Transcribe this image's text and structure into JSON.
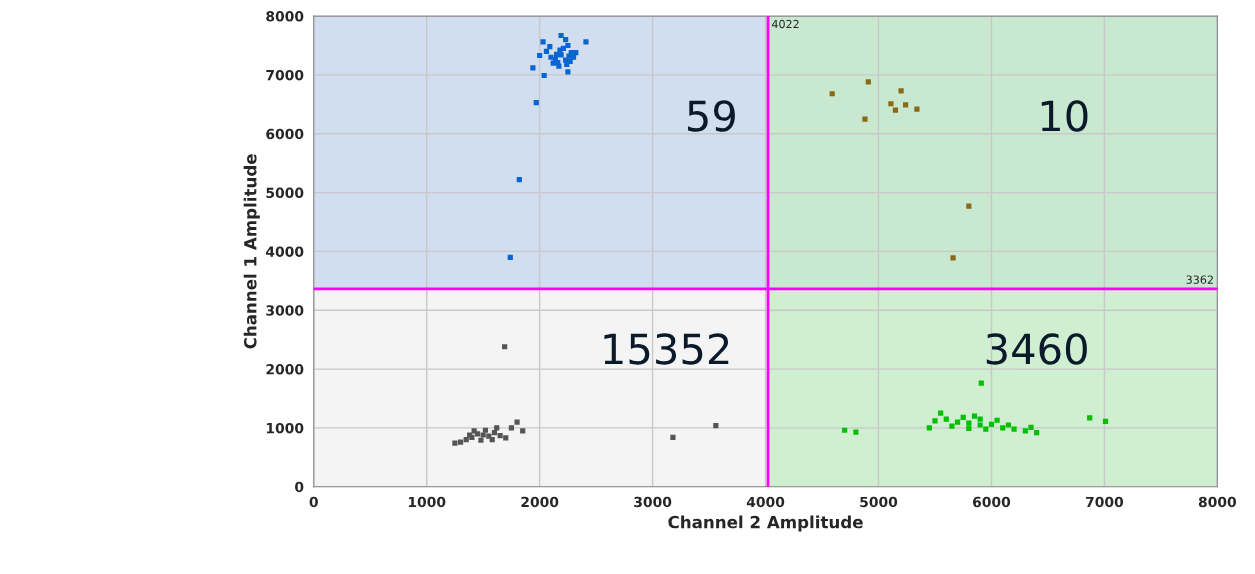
{
  "chart_data": {
    "type": "scatter",
    "xlabel": "Channel 2 Amplitude",
    "ylabel": "Channel 1 Amplitude",
    "xlim": [
      0,
      8000
    ],
    "ylim": [
      0,
      8000
    ],
    "xticks": [
      0,
      1000,
      2000,
      3000,
      4000,
      5000,
      6000,
      7000,
      8000
    ],
    "yticks": [
      0,
      1000,
      2000,
      3000,
      4000,
      5000,
      6000,
      7000,
      8000
    ],
    "grid": true,
    "marker": "square",
    "ref_lines": [
      {
        "axis": "x",
        "value": 4022,
        "label": "4022",
        "color": "#ff00ff"
      },
      {
        "axis": "y",
        "value": 3362,
        "label": "3362",
        "color": "#ff00ff"
      }
    ],
    "bands": [
      {
        "axis": "y",
        "from": 3362,
        "to": 8000,
        "color": "#c5d7ee"
      },
      {
        "axis": "x",
        "from": 4022,
        "to": 8000,
        "color": "#c4ecc4"
      }
    ],
    "annotations": [
      "59",
      "10",
      "15352",
      "3460"
    ],
    "series": [
      {
        "color": "#0a64d2",
        "x": [
          1740,
          1820,
          1970,
          2040,
          2410,
          2190,
          2030,
          1940,
          2250,
          2100,
          2150,
          2320,
          2230,
          2260,
          2280,
          2180,
          2120,
          2060,
          2240,
          2210,
          2170,
          2300,
          2090,
          2140,
          2250,
          2190,
          2270,
          2230,
          2000,
          2160
        ],
        "values": [
          3900,
          5220,
          6530,
          6990,
          7560,
          7670,
          7560,
          7120,
          7050,
          7300,
          7350,
          7380,
          7250,
          7320,
          7380,
          7420,
          7200,
          7400,
          7180,
          7450,
          7150,
          7300,
          7480,
          7260,
          7500,
          7340,
          7230,
          7600,
          7330,
          7210
        ]
      },
      {
        "color": "#8b6914",
        "x": [
          4910,
          4590,
          5200,
          5110,
          5240,
          5150,
          5340,
          4880,
          5800,
          5660
        ],
        "values": [
          6880,
          6680,
          6730,
          6510,
          6490,
          6400,
          6420,
          6250,
          4770,
          3890
        ]
      },
      {
        "color": "#555555",
        "x": [
          1690,
          3180,
          3560,
          1800,
          1750,
          1850,
          1500,
          1450,
          1550,
          1400,
          1600,
          1350,
          1650,
          1300,
          1700,
          1250,
          1520,
          1480,
          1420,
          1580,
          1380,
          1620
        ],
        "values": [
          2380,
          840,
          1040,
          1100,
          1000,
          950,
          880,
          900,
          860,
          840,
          920,
          800,
          870,
          760,
          830,
          740,
          960,
          790,
          950,
          800,
          880,
          1000
        ]
      },
      {
        "color": "#00c000",
        "x": [
          5910,
          4700,
          4800,
          6870,
          7010,
          5800,
          5700,
          5900,
          6000,
          5600,
          6100,
          5500,
          6200,
          6300,
          6400,
          5450,
          5750,
          5850,
          5650,
          6050,
          5950,
          6150,
          5550,
          6350,
          5800,
          5900
        ],
        "values": [
          1760,
          960,
          930,
          1170,
          1110,
          1080,
          1100,
          1050,
          1060,
          1150,
          1000,
          1120,
          980,
          950,
          920,
          1000,
          1180,
          1200,
          1030,
          1130,
          980,
          1050,
          1250,
          1010,
          990,
          1150
        ]
      }
    ]
  }
}
